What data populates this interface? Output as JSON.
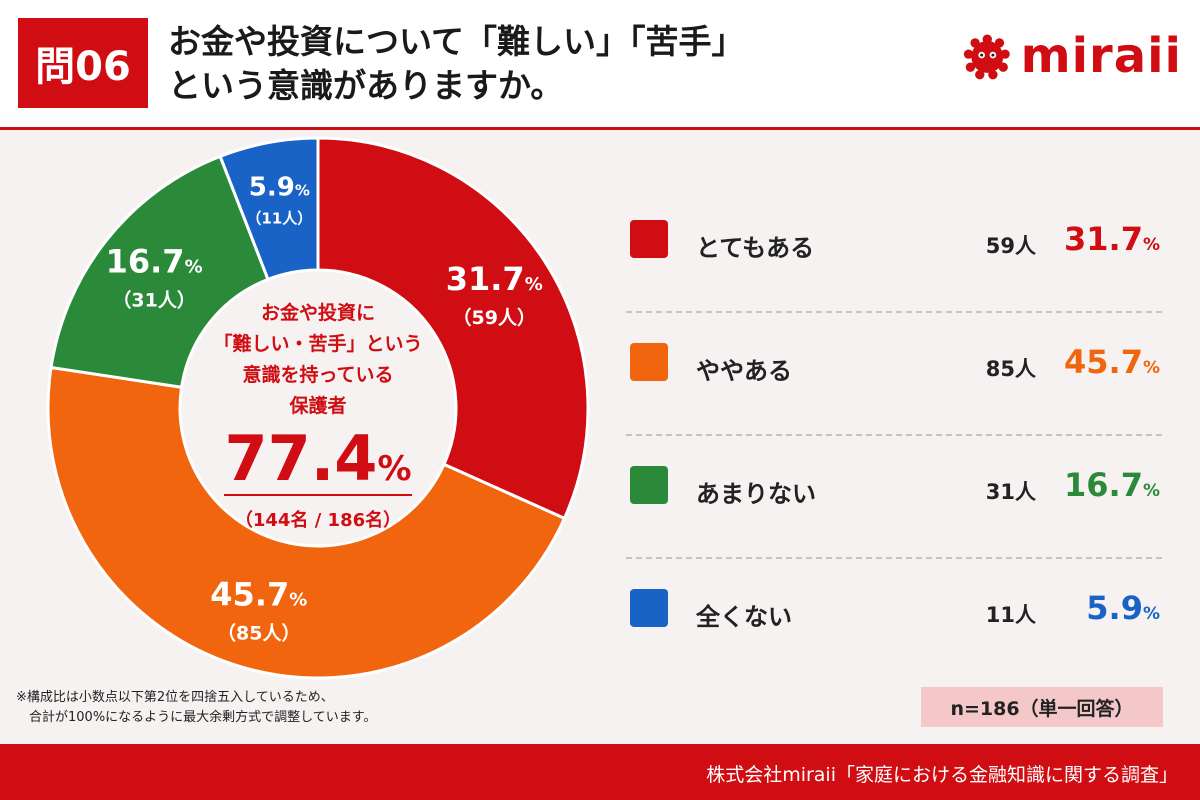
{
  "header": {
    "question_number": "問06",
    "title_line1": "お金や投資について「難しい」「苦手」",
    "title_line2": "という意識がありますか。",
    "logo_text": "miraii"
  },
  "colors": {
    "red": "#d00d12",
    "orange": "#f0650e",
    "green": "#2b8a3a",
    "blue": "#1a63c6"
  },
  "chart_data": {
    "type": "pie",
    "donut": true,
    "slices": [
      {
        "label": "とてもある",
        "value": 31.7,
        "count": "59人",
        "pct_text": "31.7",
        "count_text": "（59人）",
        "color": "#d00d12"
      },
      {
        "label": "ややある",
        "value": 45.7,
        "count": "85人",
        "pct_text": "45.7",
        "count_text": "（85人）",
        "color": "#f0650e"
      },
      {
        "label": "あまりない",
        "value": 16.7,
        "count": "31人",
        "pct_text": "16.7",
        "count_text": "（31人）",
        "color": "#2b8a3a"
      },
      {
        "label": "全くない",
        "value": 5.9,
        "count": "11人",
        "pct_text": "5.9",
        "count_text": "（11人）",
        "color": "#1a63c6"
      }
    ],
    "center": {
      "line1": "お金や投資に",
      "line2": "「難しい・苦手」という",
      "line3": "意識を持っている",
      "line4": "保護者",
      "big_value": "77.4",
      "sub": "（144名 / 186名）"
    },
    "percent_sign": "%"
  },
  "note": {
    "line1": "※構成比は小数点以下第2位を四捨五入しているため、",
    "line2": "　合計が100%になるように最大余剰方式で調整しています。"
  },
  "sample": "n=186（単一回答）",
  "footer": "株式会社miraii「家庭における金融知識に関する調査」"
}
